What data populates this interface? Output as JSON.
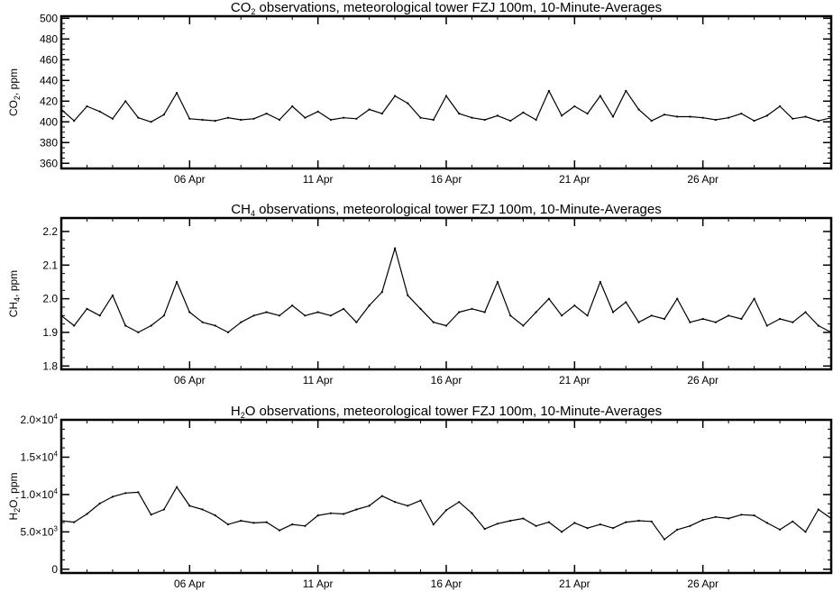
{
  "chart_data": [
    {
      "type": "line",
      "title": "CO₂ observations, meteorological tower FZJ 100m, 10-Minute-Averages",
      "ylabel": "CO₂, ppm",
      "xlim": [
        "2018-04-01",
        "2018-05-01"
      ],
      "ylim": [
        355,
        502
      ],
      "yticks": [
        360,
        380,
        400,
        420,
        440,
        460,
        480,
        500
      ],
      "yticklabels": [
        "360",
        "380",
        "400",
        "420",
        "440",
        "460",
        "480",
        "500"
      ],
      "xticks": [
        "2018-04-06",
        "2018-04-11",
        "2018-04-16",
        "2018-04-21",
        "2018-04-26"
      ],
      "xticklabels": [
        "06 Apr",
        "11 Apr",
        "16 Apr",
        "21 Apr",
        "26 Apr"
      ],
      "series": [
        {
          "x_day_of_april": [
            1.0,
            1.5,
            2.0,
            2.5,
            3.0,
            3.5,
            4.0,
            4.5,
            5.0,
            5.5,
            6.0,
            6.5,
            7.0,
            7.5,
            8.0,
            8.5,
            9.0,
            9.5,
            10.0,
            10.5,
            11.0,
            11.5,
            12.0,
            12.5,
            13.0,
            13.5,
            14.0,
            14.5,
            15.0,
            15.5,
            16.0,
            16.5,
            17.0,
            17.5,
            18.0,
            18.5,
            19.0,
            19.5,
            20.0,
            20.5,
            21.0,
            21.5,
            22.0,
            22.5,
            23.0,
            23.5,
            24.0,
            24.5,
            25.0,
            25.5,
            26.0,
            26.5,
            27.0,
            27.5,
            28.0,
            28.5,
            29.0,
            29.5,
            30.0,
            30.5,
            31.0
          ],
          "values": [
            412,
            401,
            415,
            410,
            403,
            420,
            404,
            400,
            407,
            428,
            403,
            402,
            401,
            404,
            402,
            403,
            408,
            402,
            415,
            404,
            410,
            402,
            404,
            403,
            412,
            408,
            425,
            418,
            404,
            402,
            425,
            408,
            404,
            402,
            406,
            401,
            409,
            402,
            430,
            406,
            415,
            408,
            425,
            405,
            430,
            412,
            401,
            407,
            405,
            405,
            404,
            402,
            404,
            408,
            401,
            406,
            415,
            403,
            405,
            401,
            404
          ]
        }
      ]
    },
    {
      "type": "line",
      "title": "CH₄ observations, meteorological tower FZJ 100m, 10-Minute-Averages",
      "ylabel": "CH₄, ppm",
      "xlim": [
        "2018-04-01",
        "2018-05-01"
      ],
      "ylim": [
        1.79,
        2.24
      ],
      "yticks": [
        1.8,
        1.9,
        2.0,
        2.1,
        2.2
      ],
      "yticklabels": [
        "1.8",
        "1.9",
        "2.0",
        "2.1",
        "2.2"
      ],
      "xticks": [
        "2018-04-06",
        "2018-04-11",
        "2018-04-16",
        "2018-04-21",
        "2018-04-26"
      ],
      "xticklabels": [
        "06 Apr",
        "11 Apr",
        "16 Apr",
        "21 Apr",
        "26 Apr"
      ],
      "series": [
        {
          "x_day_of_april": [
            1.0,
            1.5,
            2.0,
            2.5,
            3.0,
            3.5,
            4.0,
            4.5,
            5.0,
            5.5,
            6.0,
            6.5,
            7.0,
            7.5,
            8.0,
            8.5,
            9.0,
            9.5,
            10.0,
            10.5,
            11.0,
            11.5,
            12.0,
            12.5,
            13.0,
            13.5,
            14.0,
            14.5,
            15.0,
            15.5,
            16.0,
            16.5,
            17.0,
            17.5,
            18.0,
            18.5,
            19.0,
            19.5,
            20.0,
            20.5,
            21.0,
            21.5,
            22.0,
            22.5,
            23.0,
            23.5,
            24.0,
            24.5,
            25.0,
            25.5,
            26.0,
            26.5,
            27.0,
            27.5,
            28.0,
            28.5,
            29.0,
            29.5,
            30.0,
            30.5,
            31.0
          ],
          "values": [
            1.95,
            1.92,
            1.97,
            1.95,
            2.01,
            1.92,
            1.9,
            1.92,
            1.95,
            2.05,
            1.96,
            1.93,
            1.92,
            1.9,
            1.93,
            1.95,
            1.96,
            1.95,
            1.98,
            1.95,
            1.96,
            1.95,
            1.97,
            1.93,
            1.98,
            2.02,
            2.15,
            2.01,
            1.97,
            1.93,
            1.92,
            1.96,
            1.97,
            1.96,
            2.05,
            1.95,
            1.92,
            1.96,
            2.0,
            1.95,
            1.98,
            1.95,
            2.05,
            1.96,
            1.99,
            1.93,
            1.95,
            1.94,
            2.0,
            1.93,
            1.94,
            1.93,
            1.95,
            1.94,
            2.0,
            1.92,
            1.94,
            1.93,
            1.96,
            1.92,
            1.9
          ]
        }
      ]
    },
    {
      "type": "line",
      "title": "H₂O observations, meteorological tower FZJ 100m, 10-Minute-Averages",
      "ylabel": "H₂O, ppm",
      "xlim": [
        "2018-04-01",
        "2018-05-01"
      ],
      "ylim": [
        -500,
        20000
      ],
      "yticks": [
        0,
        5000,
        10000,
        15000,
        20000
      ],
      "yticklabels": [
        "0",
        "5.0×10³",
        "1.0×10⁴",
        "1.5×10⁴",
        "2.0×10⁴"
      ],
      "xticks": [
        "2018-04-06",
        "2018-04-11",
        "2018-04-16",
        "2018-04-21",
        "2018-04-26"
      ],
      "xticklabels": [
        "06 Apr",
        "11 Apr",
        "16 Apr",
        "21 Apr",
        "26 Apr"
      ],
      "series": [
        {
          "x_day_of_april": [
            1.0,
            1.5,
            2.0,
            2.5,
            3.0,
            3.5,
            4.0,
            4.5,
            5.0,
            5.5,
            6.0,
            6.5,
            7.0,
            7.5,
            8.0,
            8.5,
            9.0,
            9.5,
            10.0,
            10.5,
            11.0,
            11.5,
            12.0,
            12.5,
            13.0,
            13.5,
            14.0,
            14.5,
            15.0,
            15.5,
            16.0,
            16.5,
            17.0,
            17.5,
            18.0,
            18.5,
            19.0,
            19.5,
            20.0,
            20.5,
            21.0,
            21.5,
            22.0,
            22.5,
            23.0,
            23.5,
            24.0,
            24.5,
            25.0,
            25.5,
            26.0,
            26.5,
            27.0,
            27.5,
            28.0,
            28.5,
            29.0,
            29.5,
            30.0,
            30.5,
            31.0
          ],
          "values": [
            6500,
            6300,
            7400,
            8800,
            9700,
            10200,
            10300,
            7300,
            8000,
            11000,
            8500,
            8000,
            7200,
            6000,
            6500,
            6200,
            6300,
            5200,
            6000,
            5800,
            7200,
            7500,
            7400,
            8000,
            8500,
            9800,
            9000,
            8500,
            9200,
            6000,
            7900,
            9000,
            7500,
            5400,
            6100,
            6500,
            6800,
            5800,
            6300,
            5000,
            6200,
            5500,
            6000,
            5500,
            6300,
            6500,
            6400,
            4000,
            5300,
            5800,
            6600,
            7000,
            6800,
            7300,
            7200,
            6200,
            5300,
            6400,
            5000,
            8000,
            6800
          ]
        }
      ]
    }
  ]
}
